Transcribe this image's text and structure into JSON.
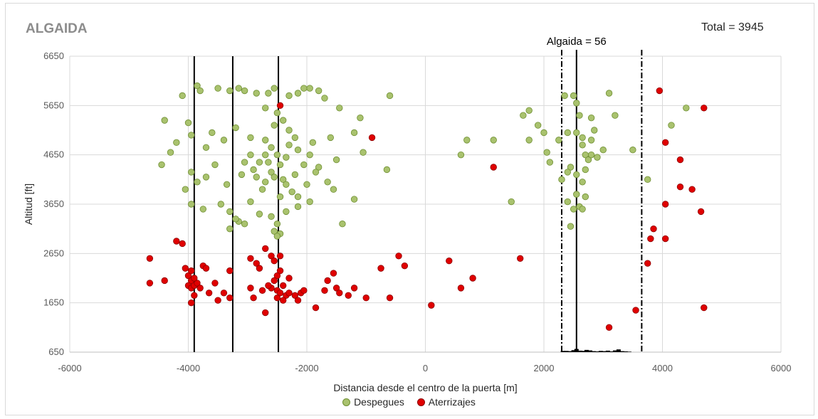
{
  "header": {
    "title": "ALGAIDA",
    "total": "Total = 3945"
  },
  "legend": {
    "takeoffs_label": "Despegues",
    "landings_label": "Aterrizajes"
  },
  "colors": {
    "takeoffs_fill": "#a9c26e",
    "takeoffs_stroke": "#6f8f33",
    "landings_fill": "#e00000",
    "landings_stroke": "#8b0000",
    "grid": "#d9d9d9",
    "lines": "#000000"
  },
  "chart_data": {
    "type": "scatter",
    "title": "ALGAIDA",
    "xlabel": "Distancia desde el centro de la puerta [m]",
    "ylabel": "Altitud [ft]",
    "xlim": [
      -6000,
      6000
    ],
    "ylim": [
      650,
      6650
    ],
    "xticks": [
      -6000,
      -4000,
      -2000,
      0,
      2000,
      4000,
      6000
    ],
    "yticks": [
      650,
      1650,
      2650,
      3650,
      4650,
      5650,
      6650
    ],
    "vertical_lines": [
      -3900,
      -3250,
      -2480,
      2550
    ],
    "dashed_lines": [
      2300,
      3650
    ],
    "annotation": "Algaida = 56",
    "series": [
      {
        "name": "Despegues",
        "points": [
          [
            -4100,
            5850
          ],
          [
            -3850,
            6050
          ],
          [
            -3800,
            5950
          ],
          [
            -3500,
            6000
          ],
          [
            -3300,
            5950
          ],
          [
            -3150,
            6000
          ],
          [
            -3050,
            5950
          ],
          [
            -2850,
            5900
          ],
          [
            -2650,
            5900
          ],
          [
            -2550,
            6000
          ],
          [
            -2300,
            5850
          ],
          [
            -2150,
            5900
          ],
          [
            -2050,
            6000
          ],
          [
            -1950,
            6000
          ],
          [
            -1800,
            5950
          ],
          [
            -1700,
            5800
          ],
          [
            -1450,
            5600
          ],
          [
            -1100,
            5400
          ],
          [
            -600,
            5850
          ],
          [
            -4400,
            5350
          ],
          [
            -4200,
            4900
          ],
          [
            -4000,
            5300
          ],
          [
            -3950,
            5050
          ],
          [
            -3600,
            5100
          ],
          [
            -3700,
            4800
          ],
          [
            -3400,
            4950
          ],
          [
            -3200,
            5200
          ],
          [
            -2950,
            5000
          ],
          [
            -2700,
            4950
          ],
          [
            -2550,
            5250
          ],
          [
            -2300,
            5150
          ],
          [
            -2200,
            5000
          ],
          [
            -1900,
            4900
          ],
          [
            -1600,
            5000
          ],
          [
            -1500,
            4550
          ],
          [
            -1200,
            5100
          ],
          [
            -1050,
            4700
          ],
          [
            -4450,
            4450
          ],
          [
            -4300,
            4700
          ],
          [
            -4050,
            3950
          ],
          [
            -3950,
            4300
          ],
          [
            -3850,
            4100
          ],
          [
            -3700,
            4200
          ],
          [
            -3550,
            4450
          ],
          [
            -3350,
            4050
          ],
          [
            -3100,
            4250
          ],
          [
            -2900,
            4350
          ],
          [
            -2700,
            4100
          ],
          [
            -2600,
            4300
          ],
          [
            -2400,
            4150
          ],
          [
            -2200,
            4250
          ],
          [
            -2000,
            4050
          ],
          [
            -1800,
            4400
          ],
          [
            -1650,
            4100
          ],
          [
            -1550,
            3950
          ],
          [
            -1200,
            3750
          ],
          [
            -650,
            4350
          ],
          [
            -1400,
            3250
          ],
          [
            -3950,
            3650
          ],
          [
            -3750,
            3550
          ],
          [
            -3450,
            3650
          ],
          [
            -3300,
            3500
          ],
          [
            -3150,
            3300
          ],
          [
            -2950,
            3700
          ],
          [
            -2800,
            3450
          ],
          [
            -2600,
            3400
          ],
          [
            -2500,
            3250
          ],
          [
            -2350,
            3500
          ],
          [
            -2150,
            3600
          ],
          [
            -1950,
            3700
          ],
          [
            -3300,
            3150
          ],
          [
            -3200,
            3350
          ],
          [
            -3050,
            3250
          ],
          [
            -2550,
            3100
          ],
          [
            -2450,
            3050
          ],
          [
            -2500,
            3000
          ],
          [
            -2700,
            5600
          ],
          [
            -2500,
            5500
          ],
          [
            -2400,
            5350
          ],
          [
            -2600,
            4800
          ],
          [
            -2500,
            4650
          ],
          [
            -2450,
            4450
          ],
          [
            -2550,
            4200
          ],
          [
            -2350,
            4600
          ],
          [
            -2650,
            4500
          ],
          [
            -2300,
            4850
          ],
          [
            -2150,
            4750
          ],
          [
            -2050,
            4450
          ],
          [
            -1950,
            4650
          ],
          [
            -1850,
            4300
          ],
          [
            -2700,
            4650
          ],
          [
            -2800,
            4500
          ],
          [
            -2850,
            4200
          ],
          [
            -2950,
            4650
          ],
          [
            -3050,
            4500
          ],
          [
            -2750,
            3950
          ],
          [
            -2250,
            3900
          ],
          [
            -2150,
            3800
          ],
          [
            -2450,
            3800
          ],
          [
            -2350,
            4050
          ],
          [
            600,
            4650
          ],
          [
            700,
            4950
          ],
          [
            1150,
            4950
          ],
          [
            1650,
            5450
          ],
          [
            1750,
            5550
          ],
          [
            1900,
            5250
          ],
          [
            2000,
            5100
          ],
          [
            2050,
            4700
          ],
          [
            2100,
            4500
          ],
          [
            2250,
            4950
          ],
          [
            2350,
            5850
          ],
          [
            2400,
            5100
          ],
          [
            2500,
            5850
          ],
          [
            2550,
            5700
          ],
          [
            2600,
            5450
          ],
          [
            2650,
            4850
          ],
          [
            2700,
            4650
          ],
          [
            2800,
            5400
          ],
          [
            2850,
            5150
          ],
          [
            2900,
            4600
          ],
          [
            3000,
            4750
          ],
          [
            3100,
            5900
          ],
          [
            3200,
            5450
          ],
          [
            3500,
            4750
          ],
          [
            3750,
            4150
          ],
          [
            4150,
            5250
          ],
          [
            4400,
            5600
          ],
          [
            1450,
            3700
          ],
          [
            1750,
            4950
          ],
          [
            2450,
            3200
          ],
          [
            2500,
            3550
          ],
          [
            2550,
            3850
          ],
          [
            2600,
            3600
          ],
          [
            2650,
            4100
          ],
          [
            2700,
            4350
          ],
          [
            2750,
            4550
          ],
          [
            2800,
            4950
          ],
          [
            2450,
            4400
          ],
          [
            2550,
            4250
          ],
          [
            2400,
            3700
          ],
          [
            2300,
            4150
          ],
          [
            2650,
            3550
          ],
          [
            2700,
            3800
          ],
          [
            2550,
            5100
          ],
          [
            2650,
            5000
          ],
          [
            2400,
            4300
          ],
          [
            2800,
            4650
          ]
        ]
      },
      {
        "name": "Aterrizajes",
        "points": [
          [
            -4650,
            2550
          ],
          [
            -4650,
            2050
          ],
          [
            -4400,
            2100
          ],
          [
            -4200,
            2900
          ],
          [
            -4100,
            2850
          ],
          [
            -4050,
            2350
          ],
          [
            -4000,
            2200
          ],
          [
            -3950,
            2100
          ],
          [
            -4000,
            2000
          ],
          [
            -3950,
            1950
          ],
          [
            -3900,
            2000
          ],
          [
            -3850,
            2050
          ],
          [
            -3900,
            2150
          ],
          [
            -3950,
            2300
          ],
          [
            -3800,
            1950
          ],
          [
            -3750,
            2400
          ],
          [
            -3700,
            2350
          ],
          [
            -3650,
            1850
          ],
          [
            -3550,
            2050
          ],
          [
            -3500,
            1700
          ],
          [
            -3400,
            1850
          ],
          [
            -3300,
            2300
          ],
          [
            -3300,
            1750
          ],
          [
            -3900,
            1800
          ],
          [
            -3950,
            1650
          ],
          [
            -2950,
            2550
          ],
          [
            -2850,
            2450
          ],
          [
            -2700,
            2750
          ],
          [
            -2600,
            2600
          ],
          [
            -2550,
            2500
          ],
          [
            -2450,
            2600
          ],
          [
            -2450,
            2300
          ],
          [
            -2500,
            2200
          ],
          [
            -2550,
            2100
          ],
          [
            -2600,
            1950
          ],
          [
            -2650,
            2000
          ],
          [
            -2500,
            1900
          ],
          [
            -2450,
            1850
          ],
          [
            -2400,
            2000
          ],
          [
            -2350,
            1800
          ],
          [
            -2500,
            1750
          ],
          [
            -2400,
            1700
          ],
          [
            -2300,
            1850
          ],
          [
            -2300,
            2150
          ],
          [
            -2200,
            1800
          ],
          [
            -2150,
            1700
          ],
          [
            -2100,
            1850
          ],
          [
            -2050,
            1900
          ],
          [
            -2700,
            1450
          ],
          [
            -2950,
            1950
          ],
          [
            -2900,
            1750
          ],
          [
            -2750,
            1900
          ],
          [
            -2800,
            2350
          ],
          [
            -1850,
            1550
          ],
          [
            -1700,
            1900
          ],
          [
            -1650,
            2100
          ],
          [
            -1550,
            2250
          ],
          [
            -1500,
            1950
          ],
          [
            -1450,
            1850
          ],
          [
            -1300,
            1800
          ],
          [
            -1200,
            1950
          ],
          [
            -1000,
            1750
          ],
          [
            -750,
            2350
          ],
          [
            -600,
            1750
          ],
          [
            -450,
            2600
          ],
          [
            -350,
            2400
          ],
          [
            100,
            1600
          ],
          [
            400,
            2500
          ],
          [
            600,
            1950
          ],
          [
            800,
            2150
          ],
          [
            1150,
            4400
          ],
          [
            1600,
            2550
          ],
          [
            -900,
            5000
          ],
          [
            -2450,
            5650
          ],
          [
            3100,
            1150
          ],
          [
            3550,
            1500
          ],
          [
            3750,
            2450
          ],
          [
            3800,
            2950
          ],
          [
            3850,
            3150
          ],
          [
            3950,
            5950
          ],
          [
            4050,
            2950
          ],
          [
            4050,
            3650
          ],
          [
            4050,
            4900
          ],
          [
            4300,
            4550
          ],
          [
            4300,
            4000
          ],
          [
            4500,
            3950
          ],
          [
            4650,
            3500
          ],
          [
            4700,
            5600
          ],
          [
            4700,
            1550
          ]
        ]
      }
    ],
    "histogram": {
      "base_y": 650,
      "bars": [
        [
          2320,
          25
        ],
        [
          2380,
          25
        ],
        [
          2440,
          20
        ],
        [
          2500,
          40
        ],
        [
          2550,
          65
        ],
        [
          2610,
          30
        ],
        [
          2670,
          25
        ],
        [
          2720,
          45
        ],
        [
          2780,
          35
        ],
        [
          2840,
          20
        ],
        [
          2900,
          15
        ],
        [
          2960,
          25
        ],
        [
          3020,
          20
        ],
        [
          3080,
          30
        ],
        [
          3140,
          15
        ],
        [
          3200,
          35
        ],
        [
          3260,
          55
        ],
        [
          3320,
          20
        ],
        [
          3380,
          15
        ],
        [
          3440,
          10
        ]
      ]
    }
  }
}
